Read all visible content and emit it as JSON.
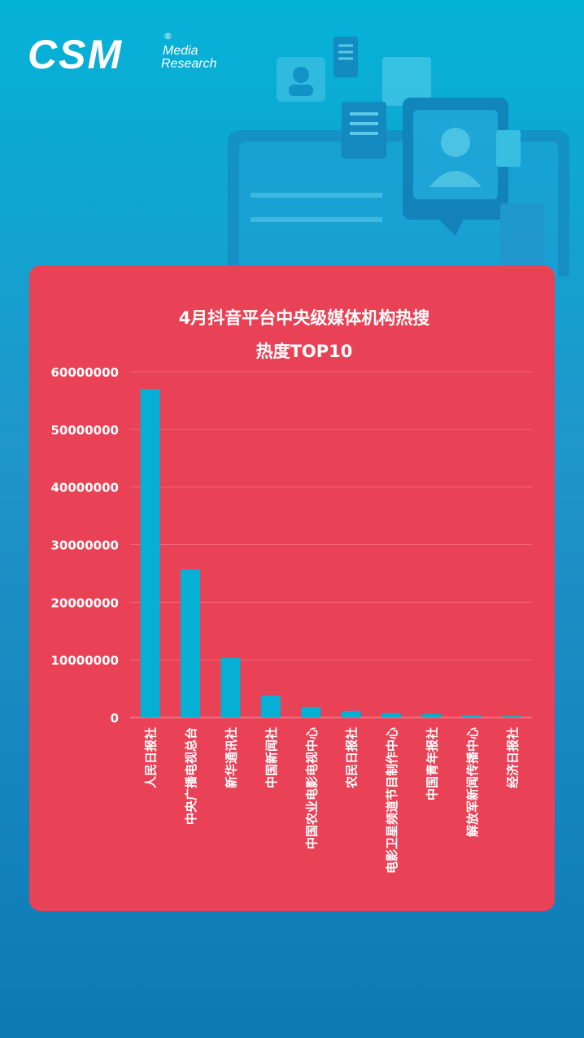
{
  "logo": {
    "brand": "CSM",
    "line1": "Media",
    "line2": "Research",
    "reg": "®"
  },
  "colors": {
    "background": "#0aa8d6",
    "card": "#e94156",
    "bar": "#06b0d4",
    "text": "#ffffff"
  },
  "chart_data": {
    "type": "bar",
    "title_line1": "4月抖音平台中央级媒体机构热搜",
    "title_line2": "热度TOP10",
    "categories": [
      "人民日报社",
      "中央广播电视总台",
      "新华通讯社",
      "中国新闻社",
      "中国农业电影电视中心",
      "农民日报社",
      "电影卫星频道节目制作中心",
      "中国青年报社",
      "解放军新闻传播中心",
      "经济日报社"
    ],
    "values": [
      57000000,
      25700000,
      10300000,
      3800000,
      1850000,
      1150000,
      750000,
      600000,
      420000,
      250000
    ],
    "ylim": [
      0,
      60000000
    ],
    "yticks": [
      "0",
      "10000000",
      "20000000",
      "30000000",
      "40000000",
      "50000000",
      "60000000"
    ],
    "grid": true,
    "legend": "none"
  }
}
